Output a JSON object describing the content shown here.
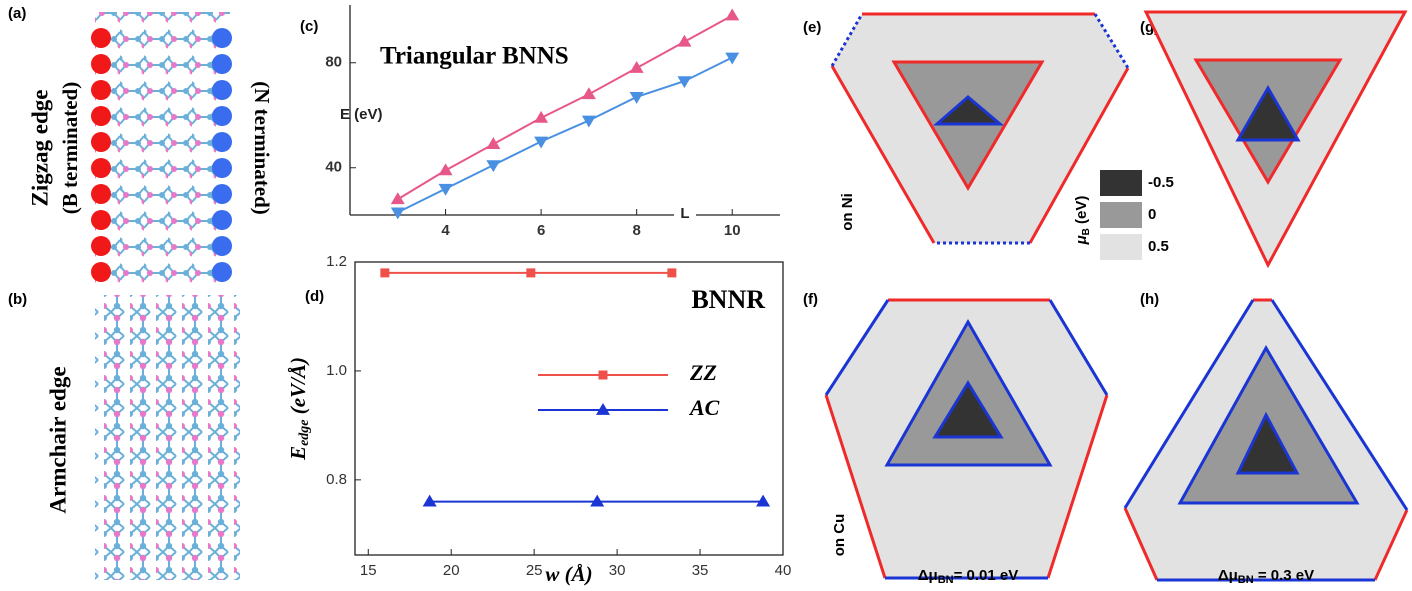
{
  "chart_data": [
    {
      "type": "line",
      "panel": "(c)",
      "title": "Triangular BNNS",
      "xlabel": "L",
      "ylabel": "E (eV)",
      "x": [
        3,
        4,
        5,
        6,
        7,
        8,
        9,
        10
      ],
      "series": [
        {
          "color": "#e8578a",
          "marker": "triangle-up",
          "values": [
            28,
            39,
            49,
            59,
            68,
            78,
            88,
            98
          ]
        },
        {
          "color": "#4a90e2",
          "marker": "triangle-down",
          "values": [
            23,
            32,
            41,
            50,
            58,
            67,
            73,
            82
          ]
        }
      ],
      "xlim": [
        2,
        11
      ],
      "ylim": [
        22,
        102
      ],
      "xticks": [
        4,
        6,
        8,
        10
      ],
      "yticks": [
        40,
        80
      ],
      "box": false
    },
    {
      "type": "line",
      "panel": "(d)",
      "title": "BNNR",
      "xlabel": "w (Å)",
      "ylabel": {
        "main": "E",
        "sub": "edge",
        "unit": " (eV/Å)"
      },
      "series": [
        {
          "name": "ZZ",
          "color": "#f0504a",
          "marker": "square",
          "x": [
            16,
            24.8,
            33.3
          ],
          "values": [
            1.18,
            1.18,
            1.18
          ]
        },
        {
          "name": "AC",
          "color": "#1a35d4",
          "marker": "triangle-up",
          "x": [
            18.7,
            28.8,
            38.8
          ],
          "values": [
            0.76,
            0.76,
            0.76
          ]
        }
      ],
      "xlim": [
        14.2,
        40
      ],
      "ylim": [
        0.662,
        1.2
      ],
      "xticks": [
        15,
        20,
        25,
        30,
        35,
        40
      ],
      "yticks": [
        {
          "value": 0.8,
          "label": "0.8"
        },
        {
          "value": 1.0,
          "label": "1.0"
        },
        {
          "value": 1.2,
          "label": "1.2"
        }
      ],
      "box": true
    }
  ],
  "panels": {
    "a": {
      "label": "(a)",
      "title": "Zigzag edge",
      "left": "(B terminated)",
      "right": "(N terminated)"
    },
    "b": {
      "label": "(b)",
      "title": "Armchair edge"
    },
    "e": {
      "label": "(e)",
      "side": "on Ni"
    },
    "f": {
      "label": "(f)",
      "side": "on Cu"
    },
    "g": {
      "label": "(g)"
    },
    "h": {
      "label": "(h)"
    },
    "colorbar": {
      "title": {
        "main": "μ",
        "sub": "B",
        "unit": " (eV)"
      },
      "items": [
        "-0.5",
        "0",
        "0.5"
      ]
    },
    "captions": [
      {
        "main": "Δμ",
        "sub": "BN",
        "rest": "= 0.01 eV"
      },
      {
        "main": "Δμ",
        "sub": "BN",
        "rest": " = 0.3 eV"
      }
    ]
  }
}
